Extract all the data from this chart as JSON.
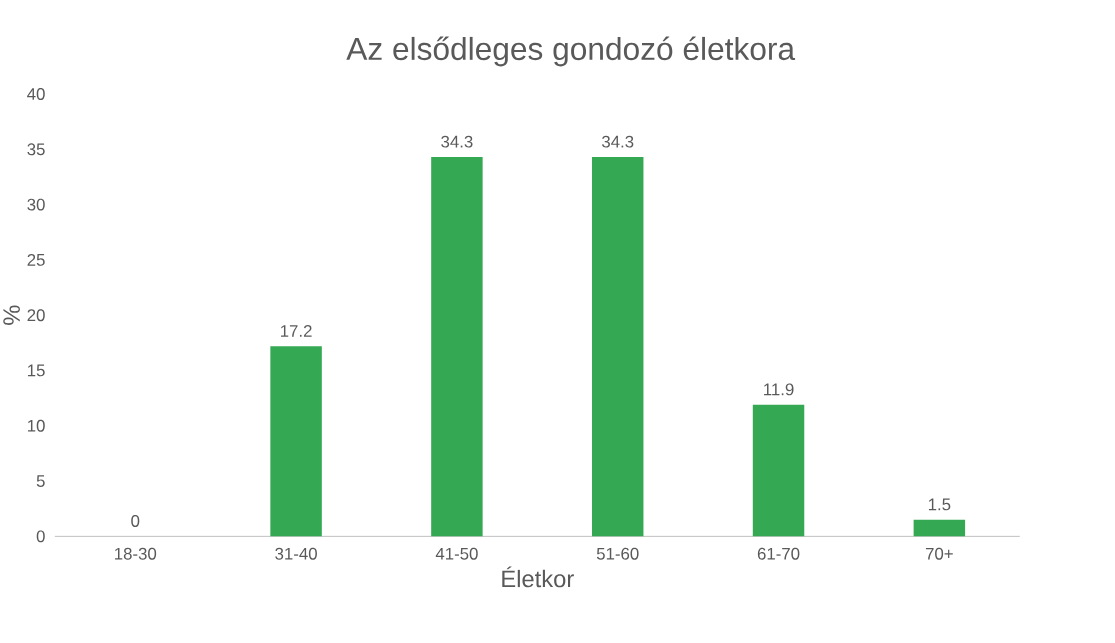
{
  "chart_data": {
    "type": "bar",
    "title": "Az elsődleges gondozó életkora",
    "xlabel": "Életkor",
    "ylabel": "%",
    "categories": [
      "18-30",
      "31-40",
      "41-50",
      "51-60",
      "61-70",
      "70+"
    ],
    "values": [
      0,
      17.2,
      34.3,
      34.3,
      11.9,
      1.5
    ],
    "color": "#34a853",
    "ylim": [
      0,
      40
    ],
    "yticks": [
      0,
      5,
      10,
      15,
      20,
      25,
      30,
      35,
      40
    ],
    "data_labels": true
  }
}
